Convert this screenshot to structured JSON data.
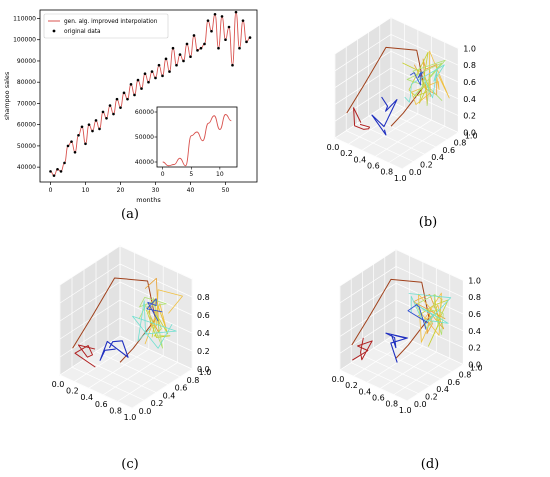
{
  "panel_labels": [
    "(a)",
    "(b)",
    "(c)",
    "(d)"
  ],
  "chart_data": [
    {
      "panel": "(a)",
      "type": "line",
      "xlabel": "months",
      "ylabel": "shampoo sales",
      "xlim": [
        -3,
        59
      ],
      "ylim": [
        33000,
        114000
      ],
      "xticks": [
        0,
        10,
        20,
        30,
        40,
        50
      ],
      "yticks": [
        40000,
        50000,
        60000,
        70000,
        80000,
        90000,
        100000,
        110000
      ],
      "grid": false,
      "legend": "top-left",
      "series": [
        {
          "name": "gen. alg. improved interpolation",
          "color": "#d9534f",
          "style": "line"
        },
        {
          "name": "original data",
          "color": "#000000",
          "style": "points"
        }
      ],
      "x": [
        0,
        1,
        2,
        3,
        4,
        5,
        6,
        7,
        8,
        9,
        10,
        11,
        12,
        13,
        14,
        15,
        16,
        17,
        18,
        19,
        20,
        21,
        22,
        23,
        24,
        25,
        26,
        27,
        28,
        29,
        30,
        31,
        32,
        33,
        34,
        35,
        36,
        37,
        38,
        39,
        40,
        41,
        42,
        43,
        44,
        45,
        46,
        47,
        48,
        49,
        50,
        51,
        52,
        53,
        54,
        55,
        56,
        57
      ],
      "values": [
        38000,
        36000,
        39000,
        38000,
        42000,
        50000,
        52000,
        47000,
        55000,
        59000,
        51000,
        60000,
        57000,
        62000,
        58000,
        66000,
        63000,
        69000,
        65000,
        72000,
        68000,
        75000,
        72000,
        79000,
        74000,
        81000,
        77000,
        84000,
        80000,
        85000,
        82000,
        88000,
        83000,
        91000,
        85000,
        96000,
        88000,
        93000,
        90000,
        98000,
        92000,
        102000,
        95000,
        96000,
        98000,
        109000,
        104000,
        112000,
        96000,
        111000,
        100000,
        106000,
        88000,
        113000,
        96000,
        109000,
        99000,
        101000
      ],
      "inset": {
        "xlim": [
          -1,
          13
        ],
        "ylim": [
          38000,
          62000
        ],
        "xticks": [
          0,
          5,
          10
        ],
        "yticks": [
          40000,
          50000,
          60000
        ],
        "x": [
          0,
          1,
          2,
          3,
          4,
          5,
          6,
          7,
          8,
          9,
          10,
          11,
          12
        ],
        "values": [
          40000,
          38500,
          39000,
          41500,
          38500,
          50500,
          52000,
          48500,
          55500,
          58500,
          53000,
          59000,
          56500
        ]
      }
    },
    {
      "panel": "(b)",
      "type": "line",
      "projection": "3d",
      "xticks": [
        "0.0",
        "0.2",
        "0.4",
        "0.6",
        "0.8",
        "1.0"
      ],
      "yticks": [
        "0.0",
        "0.2",
        "0.4",
        "0.6",
        "0.8",
        "1.0"
      ],
      "zticks": [
        "0.0",
        "0.2",
        "0.4",
        "0.6",
        "0.8",
        "1.0"
      ],
      "grid": true
    },
    {
      "panel": "(c)",
      "type": "line",
      "projection": "3d",
      "xticks": [
        "0.0",
        "0.2",
        "0.4",
        "0.6",
        "0.8",
        "1.0"
      ],
      "yticks": [
        "0.0",
        "0.2",
        "0.4",
        "0.6",
        "0.8",
        "1.0"
      ],
      "zticks": [
        "0.0",
        "0.2",
        "0.4",
        "0.6",
        "0.8"
      ],
      "grid": true
    },
    {
      "panel": "(d)",
      "type": "line",
      "projection": "3d",
      "xticks": [
        "0.0",
        "0.2",
        "0.4",
        "0.6",
        "0.8",
        "1.0"
      ],
      "yticks": [
        "0.0",
        "0.2",
        "0.4",
        "0.6",
        "0.8",
        "1.0"
      ],
      "zticks": [
        "0.0",
        "0.2",
        "0.4",
        "0.6",
        "0.8",
        "1.0"
      ],
      "grid": true
    }
  ]
}
